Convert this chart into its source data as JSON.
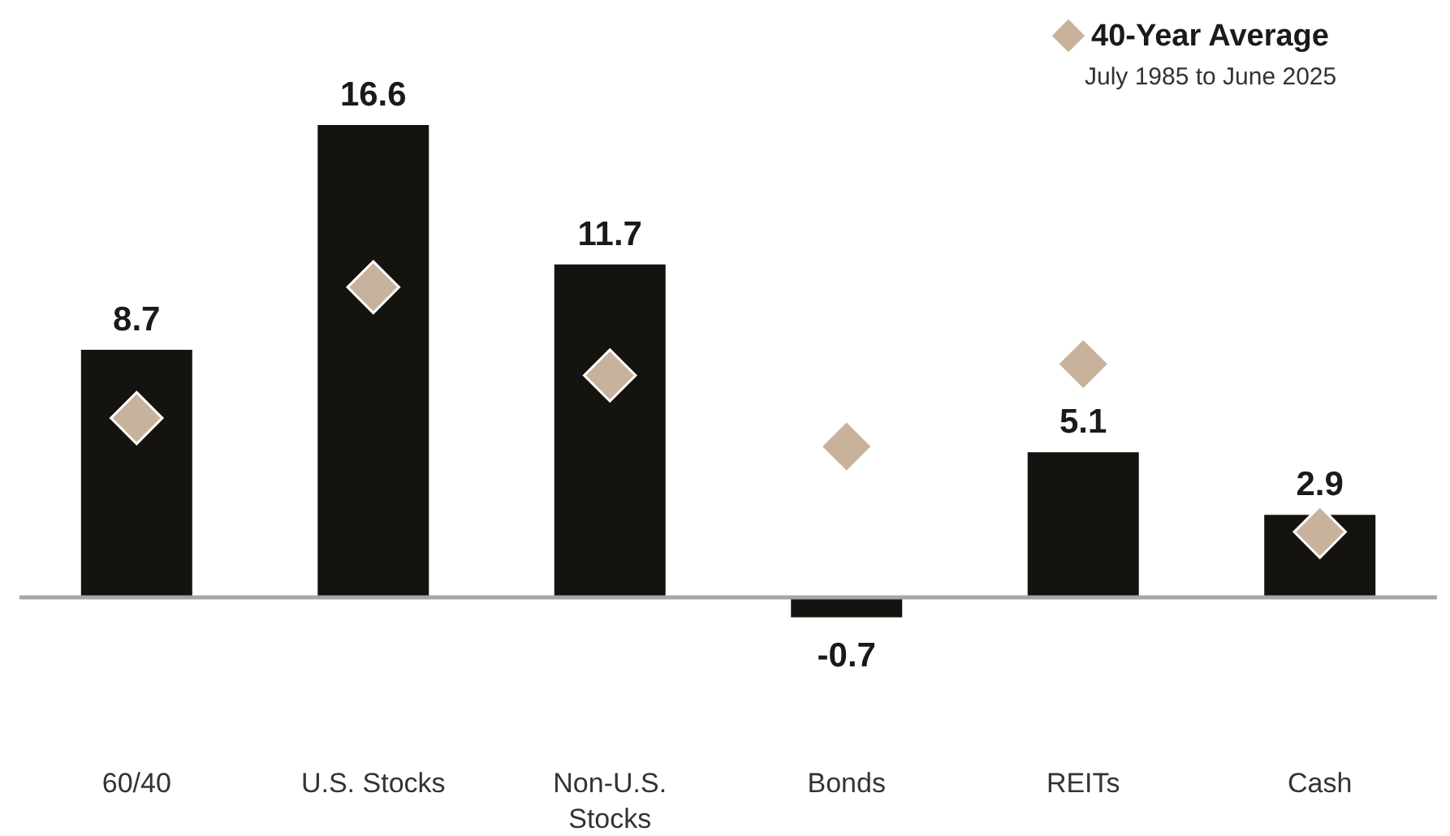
{
  "chart_data": {
    "type": "bar",
    "categories": [
      "60/40",
      "U.S. Stocks",
      "Non-U.S. Stocks",
      "Bonds",
      "REITs",
      "Cash"
    ],
    "series": [
      {
        "color": "#15130f",
        "values": [
          8.7,
          16.6,
          11.7,
          -0.7,
          5.1,
          2.9
        ],
        "value_labels": [
          "8.7",
          "16.6",
          "11.7",
          "-0.7",
          "5.1",
          "2.9"
        ]
      },
      {
        "type": "scatter",
        "name": "40-Year Average",
        "color": "#c9b29b",
        "x": [
          "60/40",
          "U.S. Stocks",
          "Non-U.S. Stocks",
          "Bonds",
          "REITs",
          "Cash"
        ],
        "values": [
          6.3,
          10.9,
          7.8,
          5.3,
          8.2,
          2.3
        ]
      }
    ],
    "marker": "diamond",
    "legend": "top right",
    "tick_labels": "x",
    "annotations": [
      "July 1985 to June 2025"
    ]
  }
}
